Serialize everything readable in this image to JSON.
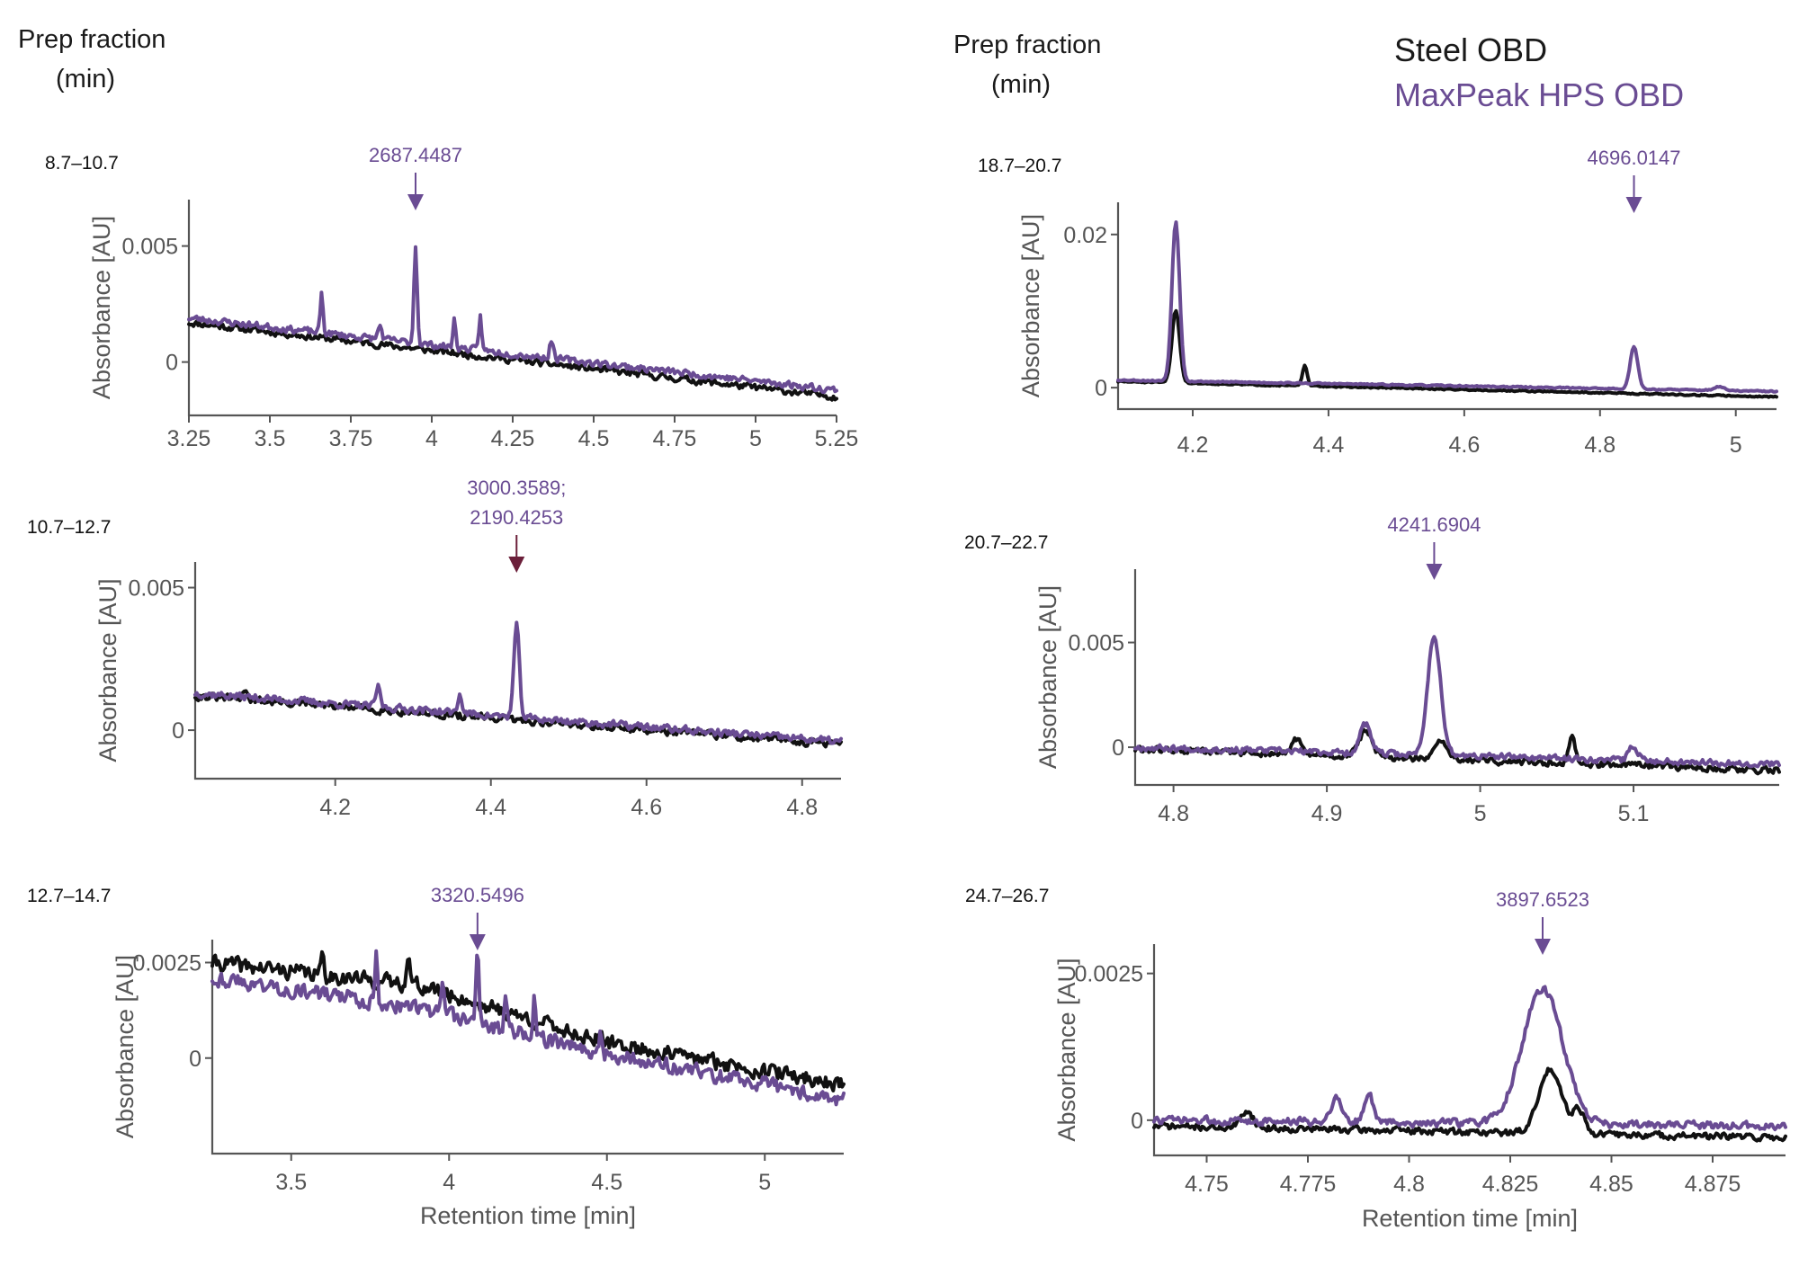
{
  "headers": {
    "left": [
      "Prep fraction",
      "(min)"
    ],
    "right": [
      "Prep fraction",
      "(min)"
    ]
  },
  "legend": [
    {
      "name": "Steel OBD",
      "color": "#1a1a1a"
    },
    {
      "name": "MaxPeak HPS OBD",
      "color": "#6a4c93"
    }
  ],
  "colors": {
    "steel": "#111111",
    "maxpeak": "#6a4c93",
    "arrow_alt": "#6b1f3a"
  },
  "chart_data": [
    {
      "type": "line",
      "fraction": "8.7–10.7",
      "ylabel": "Absorbance [AU]",
      "xlabel": "",
      "xlim": [
        3.25,
        5.25
      ],
      "ylim": [
        -0.0023,
        0.007
      ],
      "xticks": [
        3.25,
        3.5,
        3.75,
        4,
        4.25,
        4.5,
        4.75,
        5,
        5.25
      ],
      "xtick_labels": [
        "3.25",
        "3.5",
        "3.75",
        "4",
        "4.25",
        "4.5",
        "4.75",
        "5",
        "5.25"
      ],
      "yticks": [
        0,
        0.005
      ],
      "ytick_labels": [
        "0",
        "0.005"
      ],
      "annotations": [
        {
          "label": [
            "2687.4487"
          ],
          "x": 3.95,
          "arrow_color": "maxpeak"
        }
      ],
      "series": [
        {
          "name": "Steel OBD",
          "baseline": [
            [
              3.25,
              0.0017
            ],
            [
              5.25,
              -0.0015
            ]
          ],
          "noise": 0.0002,
          "peaks": [],
          "seed": 11
        },
        {
          "name": "MaxPeak HPS OBD",
          "baseline": [
            [
              3.25,
              0.0019
            ],
            [
              5.25,
              -0.0012
            ]
          ],
          "noise": 0.0002,
          "peaks": [
            [
              3.66,
              0.0017,
              0.006
            ],
            [
              3.84,
              0.0006,
              0.008
            ],
            [
              3.95,
              0.0042,
              0.007
            ],
            [
              4.07,
              0.0012,
              0.006
            ],
            [
              4.15,
              0.0015,
              0.006
            ],
            [
              4.37,
              0.0008,
              0.008
            ]
          ],
          "seed": 23
        }
      ]
    },
    {
      "type": "line",
      "fraction": "10.7–12.7",
      "ylabel": "Absorbance [AU]",
      "xlabel": "",
      "xlim": [
        4.02,
        4.85
      ],
      "ylim": [
        -0.0017,
        0.0059
      ],
      "xticks": [
        4.2,
        4.4,
        4.6,
        4.8
      ],
      "xtick_labels": [
        "4.2",
        "4.4",
        "4.6",
        "4.8"
      ],
      "yticks": [
        0,
        0.005
      ],
      "ytick_labels": [
        "0",
        "0.005"
      ],
      "annotations": [
        {
          "label": [
            "3000.3589;",
            "2190.4253"
          ],
          "x": 4.433,
          "arrow_color": "arrow_alt"
        }
      ],
      "series": [
        {
          "name": "Steel OBD",
          "baseline": [
            [
              4.02,
              0.0012
            ],
            [
              4.85,
              -0.0005
            ]
          ],
          "noise": 0.00018,
          "peaks": [
            [
              4.085,
              0.0004,
              0.004
            ]
          ],
          "seed": 31
        },
        {
          "name": "MaxPeak HPS OBD",
          "baseline": [
            [
              4.02,
              0.0013
            ],
            [
              4.85,
              -0.0004
            ]
          ],
          "noise": 0.00018,
          "peaks": [
            [
              4.255,
              0.0007,
              0.004
            ],
            [
              4.36,
              0.0006,
              0.004
            ],
            [
              4.433,
              0.0032,
              0.005
            ]
          ],
          "seed": 37
        }
      ]
    },
    {
      "type": "line",
      "fraction": "12.7–14.7",
      "ylabel": "Absorbance [AU]",
      "xlabel": "Retention time [min]",
      "xlim": [
        3.25,
        5.25
      ],
      "ylim": [
        -0.0025,
        0.0031
      ],
      "xticks": [
        3.5,
        4,
        4.5,
        5
      ],
      "xtick_labels": [
        "3.5",
        "4",
        "4.5",
        "5"
      ],
      "yticks": [
        0,
        0.0025
      ],
      "ytick_labels": [
        "0",
        "0.0025"
      ],
      "annotations": [
        {
          "label": [
            "3320.5496"
          ],
          "x": 4.09,
          "arrow_color": "maxpeak"
        }
      ],
      "series": [
        {
          "name": "Steel OBD",
          "baseline": [
            [
              3.25,
              0.0025
            ],
            [
              3.9,
              0.0019
            ],
            [
              4.5,
              0.0004
            ],
            [
              5.25,
              -0.0007
            ]
          ],
          "noise": 0.00028,
          "peaks": [
            [
              3.6,
              0.0006,
              0.006
            ],
            [
              3.87,
              0.0008,
              0.008
            ]
          ],
          "seed": 41
        },
        {
          "name": "MaxPeak HPS OBD",
          "baseline": [
            [
              3.25,
              0.0021
            ],
            [
              3.9,
              0.0013
            ],
            [
              4.5,
              0.0001
            ],
            [
              5.25,
              -0.0011
            ]
          ],
          "noise": 0.00028,
          "peaks": [
            [
              3.77,
              0.0012,
              0.006
            ],
            [
              3.98,
              0.0009,
              0.006
            ],
            [
              4.09,
              0.0018,
              0.007
            ],
            [
              4.18,
              0.001,
              0.006
            ],
            [
              4.27,
              0.001,
              0.006
            ],
            [
              4.48,
              0.0006,
              0.006
            ]
          ],
          "seed": 43
        }
      ]
    },
    {
      "type": "line",
      "fraction": "18.7–20.7",
      "ylabel": "Absorbance [AU]",
      "xlabel": "",
      "xlim": [
        4.09,
        5.06
      ],
      "ylim": [
        -0.0028,
        0.0242
      ],
      "xticks": [
        4.2,
        4.4,
        4.6,
        4.8,
        5
      ],
      "xtick_labels": [
        "4.2",
        "4.4",
        "4.6",
        "4.8",
        "5"
      ],
      "yticks": [
        0,
        0.02
      ],
      "ytick_labels": [
        "0",
        "0.02"
      ],
      "annotations": [
        {
          "label": [
            "4696.0147"
          ],
          "x": 4.85,
          "arrow_color": "maxpeak"
        }
      ],
      "series": [
        {
          "name": "Steel OBD",
          "baseline": [
            [
              4.09,
              0.0008
            ],
            [
              5.06,
              -0.0012
            ]
          ],
          "noise": 0.00012,
          "peaks": [
            [
              4.175,
              0.0095,
              0.008
            ],
            [
              4.365,
              0.0026,
              0.005
            ]
          ],
          "seed": 51
        },
        {
          "name": "MaxPeak HPS OBD",
          "baseline": [
            [
              4.09,
              0.001
            ],
            [
              5.06,
              -0.0005
            ]
          ],
          "noise": 0.00012,
          "peaks": [
            [
              4.175,
              0.0208,
              0.008
            ],
            [
              4.85,
              0.0055,
              0.008
            ],
            [
              4.975,
              0.0005,
              0.01
            ]
          ],
          "seed": 53
        }
      ]
    },
    {
      "type": "line",
      "fraction": "20.7–22.7",
      "ylabel": "Absorbance [AU]",
      "xlabel": "",
      "xlim": [
        4.775,
        5.195
      ],
      "ylim": [
        -0.0018,
        0.0085
      ],
      "xticks": [
        4.8,
        4.9,
        5,
        5.1
      ],
      "xtick_labels": [
        "4.8",
        "4.9",
        "5",
        "5.1"
      ],
      "yticks": [
        0,
        0.005
      ],
      "ytick_labels": [
        "0",
        "0.005"
      ],
      "annotations": [
        {
          "label": [
            "4241.6904"
          ],
          "x": 4.97,
          "arrow_color": "maxpeak"
        }
      ],
      "series": [
        {
          "name": "Steel OBD",
          "baseline": [
            [
              4.775,
              -0.0001
            ],
            [
              5.195,
              -0.0011
            ]
          ],
          "noise": 0.00022,
          "peaks": [
            [
              4.88,
              0.0008,
              0.004
            ],
            [
              4.925,
              0.0012,
              0.006
            ],
            [
              4.975,
              0.0008,
              0.006
            ],
            [
              5.06,
              0.0013,
              0.003
            ]
          ],
          "seed": 61
        },
        {
          "name": "MaxPeak HPS OBD",
          "baseline": [
            [
              4.775,
              0.0
            ],
            [
              5.195,
              -0.0008
            ]
          ],
          "noise": 0.0002,
          "peaks": [
            [
              4.925,
              0.0014,
              0.005
            ],
            [
              4.97,
              0.0057,
              0.006
            ],
            [
              5.1,
              0.0007,
              0.004
            ]
          ],
          "seed": 67
        }
      ]
    },
    {
      "type": "line",
      "fraction": "24.7–26.7",
      "ylabel": "Absorbance [AU]",
      "xlabel": "Retention time [min]",
      "xlim": [
        4.737,
        4.893
      ],
      "ylim": [
        -0.0006,
        0.003
      ],
      "xticks": [
        4.75,
        4.775,
        4.8,
        4.825,
        4.85,
        4.875
      ],
      "xtick_labels": [
        "4.75",
        "4.775",
        "4.8",
        "4.825",
        "4.85",
        "4.875"
      ],
      "yticks": [
        0,
        0.0025
      ],
      "ytick_labels": [
        "0",
        "0.0025"
      ],
      "annotations": [
        {
          "label": [
            "3897.6523"
          ],
          "x": 4.833,
          "arrow_color": "maxpeak"
        }
      ],
      "series": [
        {
          "name": "Steel OBD",
          "baseline": [
            [
              4.737,
              -0.0001
            ],
            [
              4.893,
              -0.0003
            ]
          ],
          "noise": 8e-05,
          "peaks": [
            [
              4.76,
              0.0003,
              0.002
            ],
            [
              4.835,
              0.0011,
              0.004
            ],
            [
              4.842,
              0.0004,
              0.002
            ]
          ],
          "seed": 71
        },
        {
          "name": "MaxPeak HPS OBD",
          "baseline": [
            [
              4.737,
              0.0
            ],
            [
              4.893,
              -0.0001
            ]
          ],
          "noise": 9e-05,
          "peaks": [
            [
              4.782,
              0.0004,
              0.002
            ],
            [
              4.79,
              0.0005,
              0.0015
            ],
            [
              4.833,
              0.0023,
              0.007
            ]
          ],
          "seed": 73
        }
      ]
    }
  ]
}
